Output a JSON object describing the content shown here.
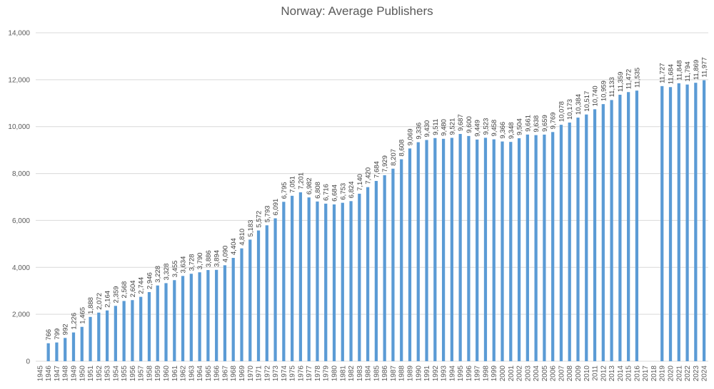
{
  "chart_data": {
    "type": "bar",
    "title": "Norway: Average Publishers",
    "xlabel": "",
    "ylabel": "",
    "ylim": [
      0,
      14000
    ],
    "yticks": [
      0,
      2000,
      4000,
      6000,
      8000,
      10000,
      12000,
      14000
    ],
    "ytick_labels": [
      "0",
      "2,000",
      "4,000",
      "6,000",
      "8,000",
      "10,000",
      "12,000",
      "14,000"
    ],
    "grid": true,
    "color": "#5b9bd5",
    "categories": [
      "1945",
      "1946",
      "1947",
      "1948",
      "1949",
      "1950",
      "1951",
      "1952",
      "1953",
      "1954",
      "1955",
      "1956",
      "1957",
      "1958",
      "1959",
      "1960",
      "1961",
      "1962",
      "1963",
      "1964",
      "1965",
      "1966",
      "1967",
      "1968",
      "1969",
      "1970",
      "1971",
      "1972",
      "1973",
      "1974",
      "1975",
      "1976",
      "1977",
      "1978",
      "1979",
      "1980",
      "1981",
      "1982",
      "1983",
      "1984",
      "1985",
      "1986",
      "1987",
      "1988",
      "1989",
      "1990",
      "1991",
      "1992",
      "1993",
      "1994",
      "1995",
      "1996",
      "1997",
      "1998",
      "1999",
      "2000",
      "2001",
      "2002",
      "2003",
      "2004",
      "2005",
      "2006",
      "2007",
      "2008",
      "2009",
      "2010",
      "2011",
      "2012",
      "2013",
      "2014",
      "2015",
      "2016",
      "2017",
      "2018",
      "2019",
      "2020",
      "2021",
      "2022",
      "2023",
      "2024"
    ],
    "values": [
      null,
      766,
      799,
      992,
      1226,
      1465,
      1888,
      2072,
      2164,
      2359,
      2568,
      2604,
      2744,
      2946,
      3228,
      3328,
      3455,
      3634,
      3728,
      3790,
      3886,
      3894,
      4090,
      4404,
      4810,
      5183,
      5572,
      5793,
      6091,
      6795,
      7051,
      7201,
      6982,
      6808,
      6716,
      6684,
      6753,
      6824,
      7140,
      7420,
      7684,
      7929,
      8207,
      8608,
      9069,
      9336,
      9430,
      9511,
      9480,
      9521,
      9687,
      9600,
      9449,
      9523,
      9458,
      9366,
      9348,
      9504,
      9661,
      9638,
      9659,
      9769,
      10078,
      10173,
      10384,
      10517,
      10740,
      10959,
      11133,
      11359,
      11472,
      11535,
      null,
      null,
      11727,
      11684,
      11848,
      11794,
      11869,
      11977
    ],
    "value_labels": [
      "",
      "766",
      "799",
      "992",
      "1,226",
      "1,465",
      "1,888",
      "2,072",
      "2,164",
      "2,359",
      "2,568",
      "2,604",
      "2,744",
      "2,946",
      "3,228",
      "3,328",
      "3,455",
      "3,634",
      "3,728",
      "3,790",
      "3,886",
      "3,894",
      "4,090",
      "4,404",
      "4,810",
      "5,183",
      "5,572",
      "5,793",
      "6,091",
      "6,795",
      "7,051",
      "7,201",
      "6,982",
      "6,808",
      "6,716",
      "6,684",
      "6,753",
      "6,824",
      "7,140",
      "7,420",
      "7,684",
      "7,929",
      "8,207",
      "8,608",
      "9,069",
      "9,336",
      "9,430",
      "9,511",
      "9,480",
      "9,521",
      "9,687",
      "9,600",
      "9,449",
      "9,523",
      "9,458",
      "9,366",
      "9,348",
      "9,504",
      "9,661",
      "9,638",
      "9,659",
      "9,769",
      "10,078",
      "10,173",
      "10,384",
      "10,517",
      "10,740",
      "10,959",
      "11,133",
      "11,359",
      "11,472",
      "11,535",
      "",
      "",
      "11,727",
      "11,684",
      "11,848",
      "11,794",
      "11,869",
      "11,977"
    ]
  }
}
